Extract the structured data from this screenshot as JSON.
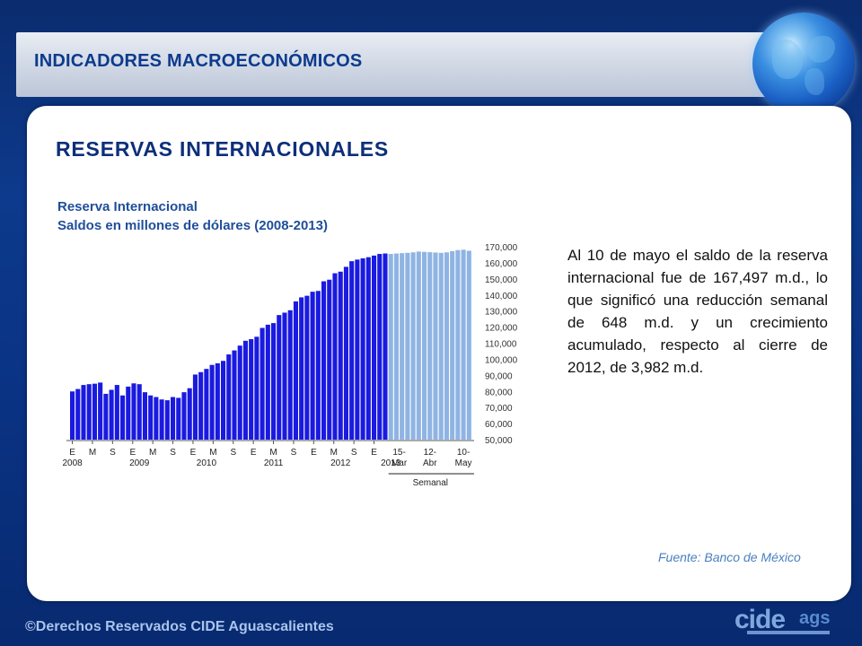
{
  "header": {
    "title": "INDICADORES MACROECONÓMICOS"
  },
  "section": {
    "title": "RESERVAS  INTERNACIONALES"
  },
  "chart_data": {
    "type": "bar",
    "title": "Reserva Internacional",
    "subtitle": "Saldos en millones de dólares (2008-2013)",
    "ylim": [
      50000,
      170000
    ],
    "y_ticks": [
      "170,000",
      "160,000",
      "150,000",
      "140,000",
      "130,000",
      "120,000",
      "110,000",
      "100,000",
      "90,000",
      "80,000",
      "70,000",
      "60,000",
      "50,000"
    ],
    "y_tick_values": [
      170000,
      160000,
      150000,
      140000,
      130000,
      120000,
      110000,
      100000,
      90000,
      80000,
      70000,
      60000,
      50000
    ],
    "x_tick_labels": [
      "E",
      "M",
      "S",
      "E",
      "M",
      "S",
      "E",
      "M",
      "S",
      "E",
      "M",
      "S",
      "E",
      "M",
      "S",
      "E",
      "15-",
      "12-",
      "10-"
    ],
    "x_tick_labels_2": [
      "Mar",
      "Abr",
      "May"
    ],
    "year_labels": [
      "2008",
      "2009",
      "2010",
      "2011",
      "2012",
      "2013"
    ],
    "weekly_label": "Semanal",
    "monthly_values": [
      80000,
      81500,
      84000,
      84500,
      84800,
      85500,
      78500,
      81000,
      84000,
      77500,
      83000,
      85000,
      84500,
      79500,
      77500,
      76500,
      75000,
      74500,
      76500,
      76000,
      79500,
      82000,
      90500,
      92000,
      94000,
      96500,
      97500,
      99000,
      103000,
      105500,
      108500,
      111500,
      112500,
      114000,
      119500,
      121500,
      122500,
      127500,
      129000,
      130500,
      136000,
      138500,
      139500,
      142000,
      142500,
      148500,
      149500,
      153500,
      154500,
      157500,
      161000,
      162000,
      162800,
      163500,
      164500,
      165500,
      165800
    ],
    "weekly_values": [
      165500,
      165800,
      166000,
      166200,
      166500,
      167000,
      166800,
      166600,
      166400,
      166200,
      166500,
      167200,
      167900,
      168145,
      167497
    ],
    "colors": {
      "monthly": "#1a1ae0",
      "weekly": "#8fb4e3",
      "axis": "#555555"
    }
  },
  "body_text": "Al 10 de mayo el saldo de la reserva internacional fue de 167,497 m.d., lo que significó una reducción semanal de 648 m.d. y un crecimiento acumulado, respecto al cierre de 2012, de 3,982 m.d.",
  "source": "Fuente: Banco de México",
  "footer": {
    "copyright": "©Derechos Reservados CIDE Aguascalientes"
  },
  "logo": {
    "text_main": "cide",
    "text_sub": "ags"
  }
}
